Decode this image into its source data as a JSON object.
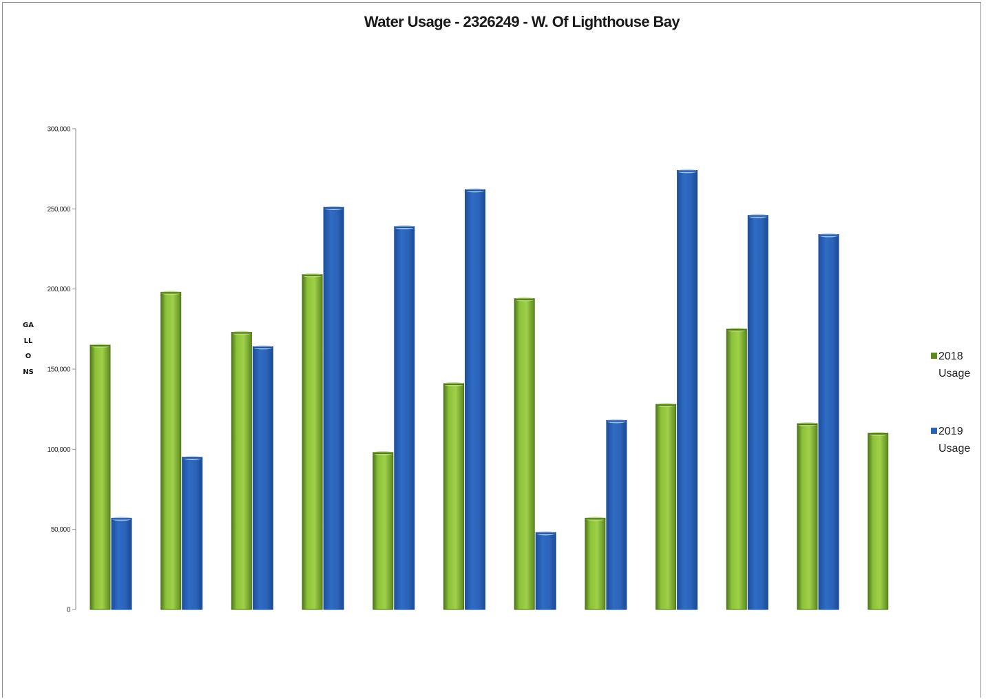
{
  "chart_data": {
    "type": "bar",
    "title": "Water Usage - 2326249 - W. Of Lighthouse Bay",
    "xlabel": "",
    "ylabel": "GALLONS",
    "ylim": [
      0,
      300000
    ],
    "yticks": [
      "0",
      "50,000",
      "100,000",
      "150,000",
      "200,000",
      "250,000",
      "300,000"
    ],
    "categories": [
      "",
      "",
      "",
      "",
      "",
      "",
      "",
      "",
      "",
      "",
      "",
      ""
    ],
    "grid": false,
    "legend_position": "right",
    "series": [
      {
        "name": "2018 Usage",
        "color": "#7aaa2a",
        "dark": "#4d7318",
        "values": [
          165000,
          198000,
          173000,
          209000,
          98000,
          141000,
          194000,
          57000,
          128000,
          175000,
          116000,
          110000
        ]
      },
      {
        "name": "2019 Usage",
        "color": "#2b63b8",
        "dark": "#1d4c96",
        "values": [
          57000,
          95000,
          164000,
          251000,
          239000,
          262000,
          48000,
          118000,
          274000,
          246000,
          234000,
          null
        ]
      }
    ],
    "legend": [
      {
        "line1": "2018",
        "line2": "Usage",
        "color": "#5d8a1e"
      },
      {
        "line1": "2019",
        "line2": "Usage",
        "color": "#2b63b8"
      }
    ]
  }
}
